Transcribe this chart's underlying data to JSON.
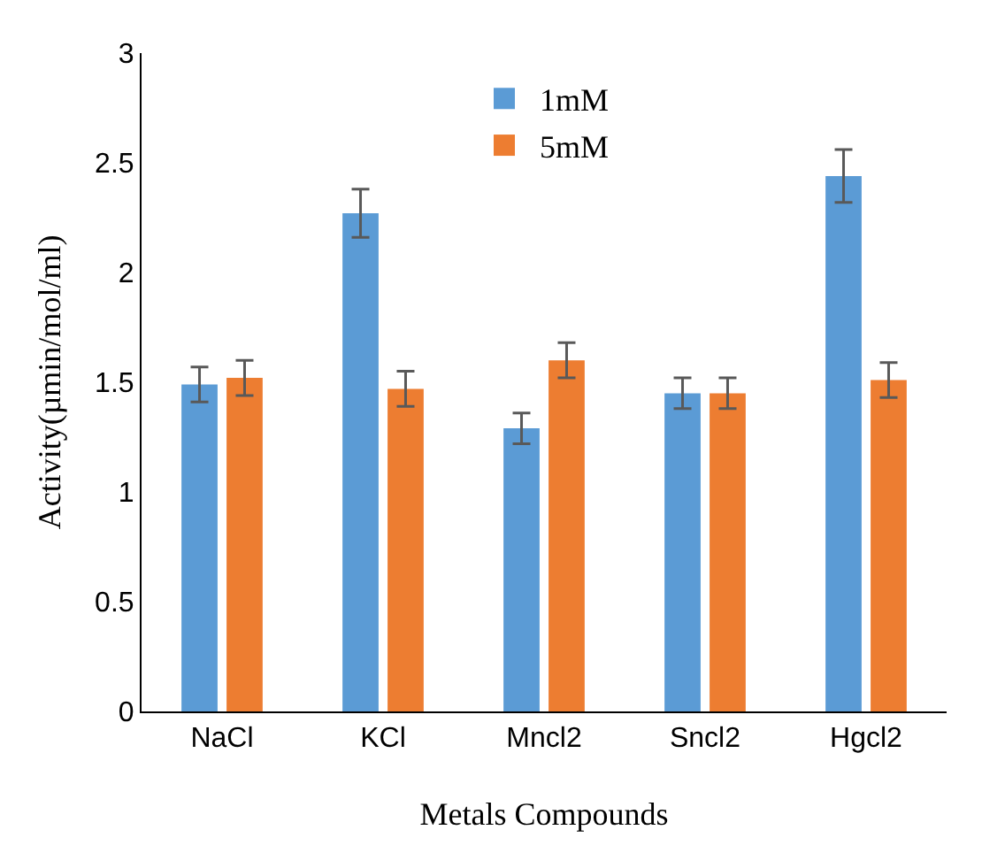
{
  "chart_data": {
    "type": "bar",
    "xlabel": "Metals Compounds",
    "ylabel": "Activity(µmin/mol/ml)",
    "categories": [
      "NaCl",
      "KCl",
      "Mncl2",
      "Sncl2",
      "Hgcl2"
    ],
    "series": [
      {
        "name": "1mM",
        "color": "#5b9bd5",
        "values": [
          1.49,
          2.27,
          1.29,
          1.45,
          2.44
        ],
        "errors": [
          0.08,
          0.11,
          0.07,
          0.07,
          0.12
        ]
      },
      {
        "name": "5mM",
        "color": "#ed7d31",
        "values": [
          1.52,
          1.47,
          1.6,
          1.45,
          1.51
        ],
        "errors": [
          0.08,
          0.08,
          0.08,
          0.07,
          0.08
        ]
      }
    ],
    "ylim": [
      0,
      3
    ],
    "yticks": [
      0,
      0.5,
      1,
      1.5,
      2,
      2.5,
      3
    ],
    "grid": false,
    "legend": "top"
  }
}
